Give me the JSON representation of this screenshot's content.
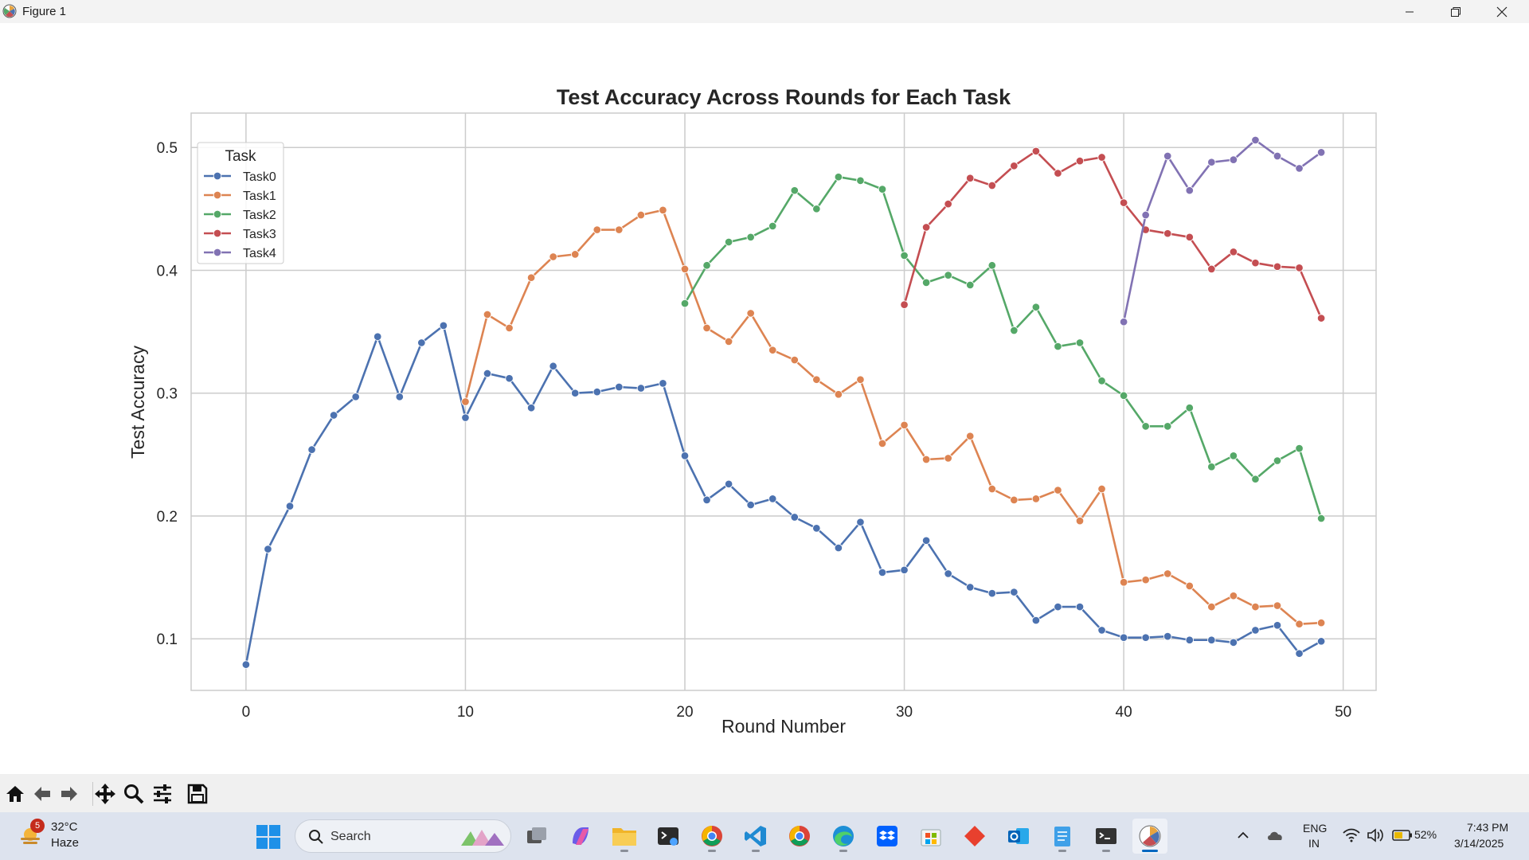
{
  "window": {
    "title": "Figure 1"
  },
  "chart_data": {
    "type": "line",
    "title": "Test Accuracy Across Rounds for Each Task",
    "xlabel": "Round Number",
    "ylabel": "Test Accuracy",
    "xlim": [
      -2.5,
      51.5
    ],
    "ylim": [
      0.058,
      0.528
    ],
    "xticks": [
      0,
      10,
      20,
      30,
      40,
      50
    ],
    "yticks": [
      0.1,
      0.2,
      0.3,
      0.4,
      0.5
    ],
    "xtick_labels": [
      "0",
      "10",
      "20",
      "30",
      "40",
      "50"
    ],
    "ytick_labels": [
      "0.1",
      "0.2",
      "0.3",
      "0.4",
      "0.5"
    ],
    "grid": true,
    "legend": {
      "title": "Task",
      "placement": "top-left"
    },
    "series": [
      {
        "name": "Task0",
        "color": "#4c72b0",
        "x_start": 0,
        "values": [
          0.079,
          0.173,
          0.208,
          0.254,
          0.282,
          0.297,
          0.346,
          0.297,
          0.341,
          0.355,
          0.28,
          0.316,
          0.312,
          0.288,
          0.322,
          0.3,
          0.301,
          0.305,
          0.304,
          0.308,
          0.249,
          0.213,
          0.226,
          0.209,
          0.214,
          0.199,
          0.19,
          0.174,
          0.195,
          0.154,
          0.156,
          0.18,
          0.153,
          0.142,
          0.137,
          0.138,
          0.115,
          0.126,
          0.126,
          0.107,
          0.101,
          0.101,
          0.102,
          0.099,
          0.099,
          0.097,
          0.107,
          0.111,
          0.088,
          0.098
        ]
      },
      {
        "name": "Task1",
        "color": "#dd8452",
        "x_start": 10,
        "values": [
          0.293,
          0.364,
          0.353,
          0.394,
          0.411,
          0.413,
          0.433,
          0.433,
          0.445,
          0.449,
          0.401,
          0.353,
          0.342,
          0.365,
          0.335,
          0.327,
          0.311,
          0.299,
          0.311,
          0.259,
          0.274,
          0.246,
          0.247,
          0.265,
          0.222,
          0.213,
          0.214,
          0.221,
          0.196,
          0.222,
          0.146,
          0.148,
          0.153,
          0.143,
          0.126,
          0.135,
          0.126,
          0.127,
          0.112,
          0.113
        ]
      },
      {
        "name": "Task2",
        "color": "#55a868",
        "x_start": 20,
        "values": [
          0.373,
          0.404,
          0.423,
          0.427,
          0.436,
          0.465,
          0.45,
          0.476,
          0.473,
          0.466,
          0.412,
          0.39,
          0.396,
          0.388,
          0.404,
          0.351,
          0.37,
          0.338,
          0.341,
          0.31,
          0.298,
          0.273,
          0.273,
          0.288,
          0.24,
          0.249,
          0.23,
          0.245,
          0.255,
          0.198
        ]
      },
      {
        "name": "Task3",
        "color": "#c44e52",
        "x_start": 30,
        "values": [
          0.372,
          0.435,
          0.454,
          0.475,
          0.469,
          0.485,
          0.497,
          0.479,
          0.489,
          0.492,
          0.455,
          0.433,
          0.43,
          0.427,
          0.401,
          0.415,
          0.406,
          0.403,
          0.402,
          0.361
        ]
      },
      {
        "name": "Task4",
        "color": "#8172b3",
        "x_start": 40,
        "values": [
          0.358,
          0.445,
          0.493,
          0.465,
          0.488,
          0.49,
          0.506,
          0.493,
          0.483,
          0.496
        ]
      }
    ]
  },
  "toolbar": {
    "home": "home-icon",
    "back": "back-arrow-icon",
    "forward": "forward-arrow-icon",
    "pan": "pan-icon",
    "zoom": "zoom-icon",
    "configure": "configure-subplots-icon",
    "save": "save-icon"
  },
  "taskbar": {
    "weather_temp": "32°C",
    "weather_desc": "Haze",
    "weather_badge": "5",
    "search_placeholder": "Search",
    "lang_line1": "ENG",
    "lang_line2": "IN",
    "battery": "52%",
    "time": "7:43 PM",
    "date": "3/14/2025"
  }
}
